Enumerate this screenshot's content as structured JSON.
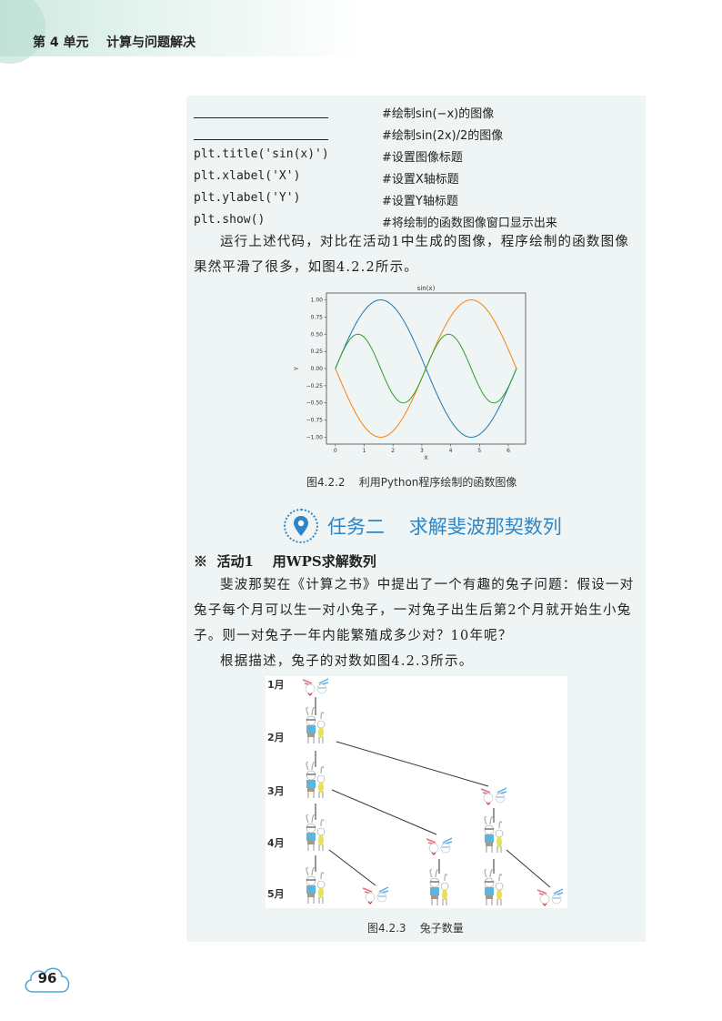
{
  "header": {
    "unit_title": "第 4 单元    计算与问题解决"
  },
  "code": {
    "lines": [
      {
        "code": "",
        "comment": "#绘制sin(−x)的图像",
        "blank": true
      },
      {
        "code": "",
        "comment": "#绘制sin(2x)/2的图像",
        "blank": true
      },
      {
        "code": "plt.title('sin(x)')",
        "comment": "#设置图像标题"
      },
      {
        "code": "plt.xlabel('X')",
        "comment": "#设置X轴标题"
      },
      {
        "code": "plt.ylabel('Y')",
        "comment": "#设置Y轴标题"
      },
      {
        "code": "plt.show()",
        "comment": "#将绘制的函数图像窗口显示出来"
      }
    ]
  },
  "para1": "运行上述代码，对比在活动1中生成的图像，程序绘制的函数图像果然平滑了很多，如图4.2.2所示。",
  "chart_data": {
    "type": "line",
    "title": "sin(x)",
    "xlabel": "X",
    "ylabel": "Y",
    "xlim": [
      -0.31,
      6.6
    ],
    "ylim": [
      -1.1,
      1.1
    ],
    "xticks": [
      "0",
      "1",
      "2",
      "3",
      "4",
      "5",
      "6"
    ],
    "yticks": [
      "1.00",
      "0.75",
      "0.50",
      "0.25",
      "0.00",
      "−0.25",
      "−0.50",
      "−0.75",
      "−1.00"
    ],
    "x_range": [
      0,
      6.2832
    ],
    "grid": false,
    "series": [
      {
        "function": "sin(x)",
        "color": "#1f77b4"
      },
      {
        "function": "sin(-x)",
        "color": "#ff7f0e"
      },
      {
        "function": "sin(2x)/2",
        "color": "#2ca02c"
      }
    ]
  },
  "fig1_caption": "图4.2.2    利用Python程序绘制的函数图像",
  "task": {
    "title": "任务二    求解斐波那契数列",
    "icon": "location-pin-icon",
    "color": "#2f86c6"
  },
  "activity": "※  活动1    用WPS求解数列",
  "para2": "斐波那契在《计算之书》中提出了一个有趣的兔子问题：假设一对兔子每个月可以生一对小兔子，一对兔子出生后第2个月就开始生小兔子。则一对兔子一年内能繁殖成多少对？10年呢？",
  "para3": "根据描述，兔子的对数如图4.2.3所示。",
  "rabbit_fig": {
    "months": [
      "1月",
      "2月",
      "3月",
      "4月",
      "5月"
    ],
    "pairs_per_month": [
      1,
      1,
      2,
      3,
      5
    ]
  },
  "fig2_caption": "图4.2.3    兔子数量",
  "page_number": "96"
}
